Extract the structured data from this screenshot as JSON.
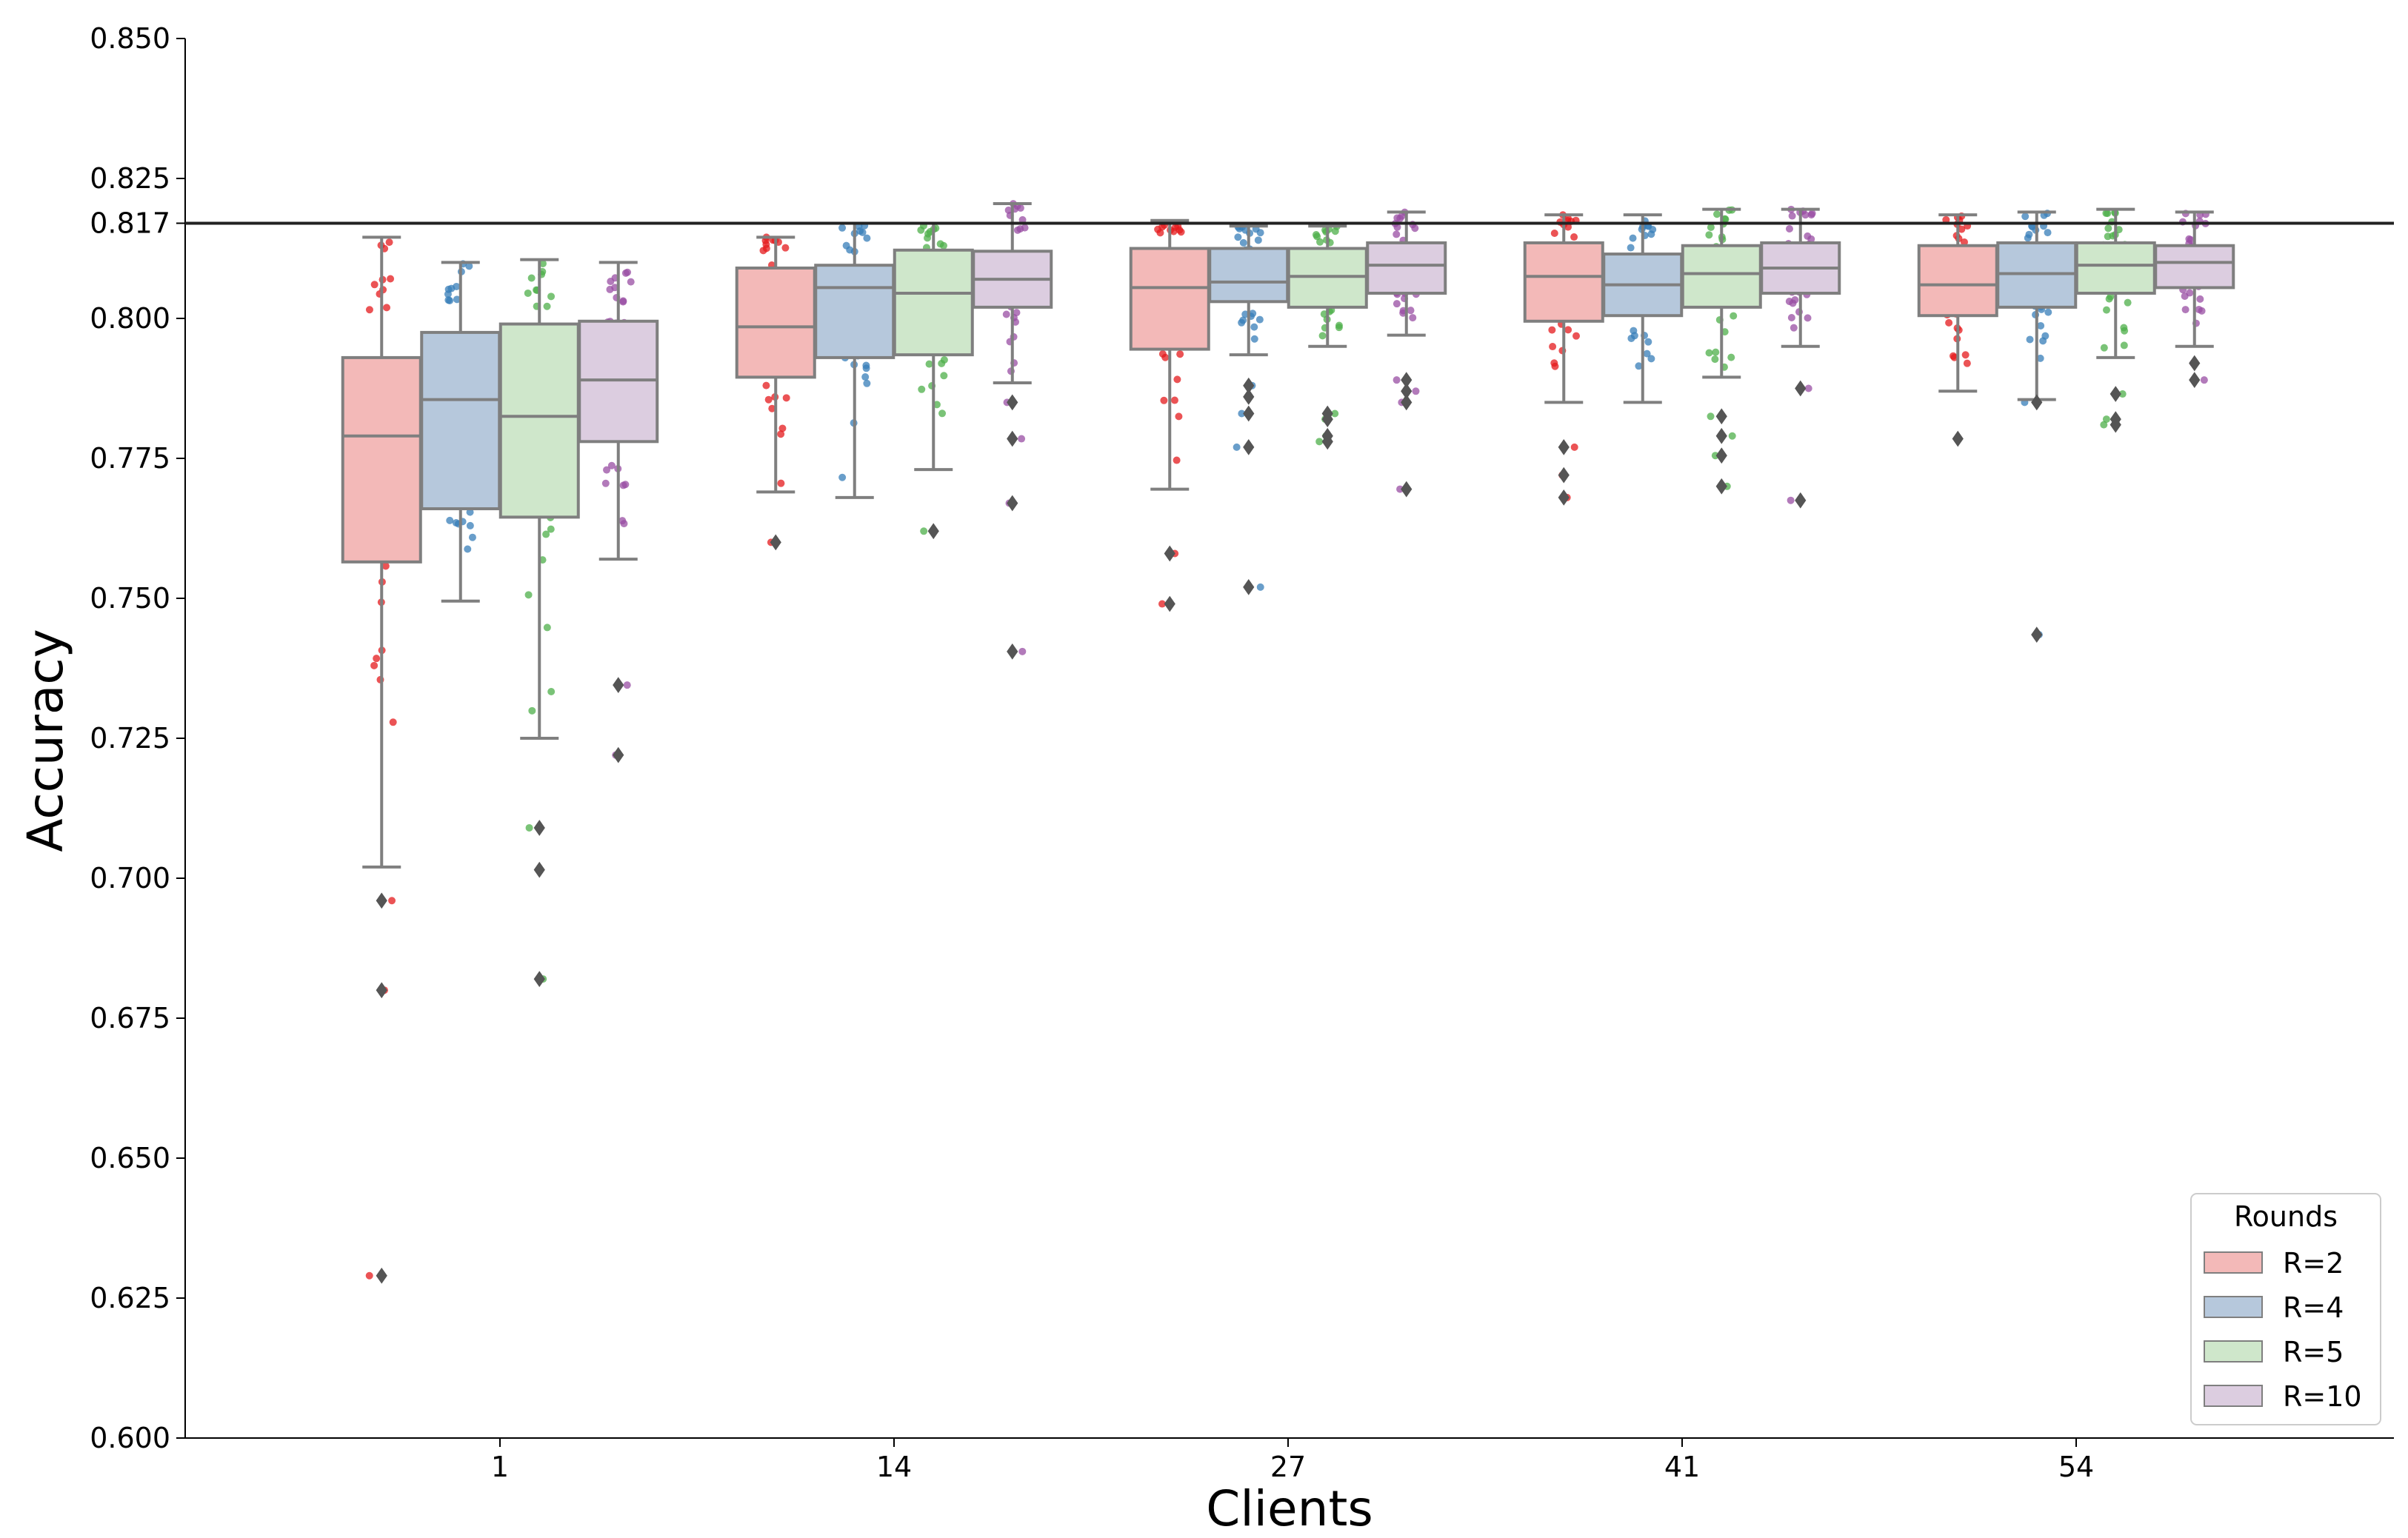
{
  "chart_data": {
    "type": "box",
    "title": "",
    "xlabel": "Clients",
    "ylabel": "Accuracy",
    "ylim": [
      0.6,
      0.85
    ],
    "yticks": [
      0.6,
      0.625,
      0.65,
      0.675,
      0.7,
      0.725,
      0.75,
      0.775,
      0.8,
      0.817,
      0.825,
      0.85
    ],
    "ytick_labels": [
      "0.600",
      "0.625",
      "0.650",
      "0.675",
      "0.700",
      "0.725",
      "0.750",
      "0.775",
      "0.800",
      "0.817",
      "0.825",
      "0.850"
    ],
    "categories": [
      "1",
      "14",
      "27",
      "41",
      "54"
    ],
    "reference_line": 0.817,
    "legend": {
      "title": "Rounds",
      "position": "bottom-right"
    },
    "series": [
      {
        "name": "R=2",
        "color": "#e41a1c",
        "box_color": "#f3b9b8",
        "boxes": [
          {
            "q1": 0.7565,
            "median": 0.779,
            "q3": 0.793,
            "whisker_low": 0.702,
            "whisker_high": 0.8145,
            "outliers": [
              0.696,
              0.68,
              0.629
            ]
          },
          {
            "q1": 0.7895,
            "median": 0.7985,
            "q3": 0.809,
            "whisker_low": 0.769,
            "whisker_high": 0.8145,
            "outliers": [
              0.76
            ]
          },
          {
            "q1": 0.7945,
            "median": 0.8055,
            "q3": 0.8125,
            "whisker_low": 0.7695,
            "whisker_high": 0.8175,
            "outliers": [
              0.758,
              0.749
            ]
          },
          {
            "q1": 0.7995,
            "median": 0.8075,
            "q3": 0.8135,
            "whisker_low": 0.785,
            "whisker_high": 0.8185,
            "outliers": [
              0.777,
              0.772,
              0.768
            ]
          },
          {
            "q1": 0.8005,
            "median": 0.806,
            "q3": 0.813,
            "whisker_low": 0.787,
            "whisker_high": 0.8185,
            "outliers": [
              0.7785
            ]
          }
        ]
      },
      {
        "name": "R=4",
        "color": "#377eb8",
        "box_color": "#b6c8dc",
        "boxes": [
          {
            "q1": 0.766,
            "median": 0.7855,
            "q3": 0.7975,
            "whisker_low": 0.7495,
            "whisker_high": 0.81,
            "outliers": []
          },
          {
            "q1": 0.793,
            "median": 0.8055,
            "q3": 0.8095,
            "whisker_low": 0.768,
            "whisker_high": 0.817,
            "outliers": []
          },
          {
            "q1": 0.803,
            "median": 0.8065,
            "q3": 0.8125,
            "whisker_low": 0.7935,
            "whisker_high": 0.8165,
            "outliers": [
              0.788,
              0.786,
              0.783,
              0.777,
              0.752
            ]
          },
          {
            "q1": 0.8005,
            "median": 0.806,
            "q3": 0.8115,
            "whisker_low": 0.785,
            "whisker_high": 0.8185,
            "outliers": []
          },
          {
            "q1": 0.802,
            "median": 0.808,
            "q3": 0.8135,
            "whisker_low": 0.7855,
            "whisker_high": 0.819,
            "outliers": [
              0.785,
              0.7435
            ]
          }
        ]
      },
      {
        "name": "R=5",
        "color": "#4daf4a",
        "box_color": "#cfe7cb",
        "boxes": [
          {
            "q1": 0.7645,
            "median": 0.7825,
            "q3": 0.799,
            "whisker_low": 0.725,
            "whisker_high": 0.8105,
            "outliers": [
              0.709,
              0.7015,
              0.682
            ]
          },
          {
            "q1": 0.7935,
            "median": 0.8045,
            "q3": 0.8122,
            "whisker_low": 0.773,
            "whisker_high": 0.817,
            "outliers": [
              0.762
            ]
          },
          {
            "q1": 0.802,
            "median": 0.8075,
            "q3": 0.8125,
            "whisker_low": 0.795,
            "whisker_high": 0.8165,
            "outliers": [
              0.783,
              0.782,
              0.779,
              0.778
            ]
          },
          {
            "q1": 0.802,
            "median": 0.808,
            "q3": 0.813,
            "whisker_low": 0.7895,
            "whisker_high": 0.8195,
            "outliers": [
              0.7825,
              0.779,
              0.7755,
              0.77
            ]
          },
          {
            "q1": 0.8045,
            "median": 0.8095,
            "q3": 0.8135,
            "whisker_low": 0.793,
            "whisker_high": 0.8195,
            "outliers": [
              0.7865,
              0.782,
              0.781
            ]
          }
        ]
      },
      {
        "name": "R=10",
        "color": "#984ea3",
        "box_color": "#dccde0",
        "boxes": [
          {
            "q1": 0.778,
            "median": 0.789,
            "q3": 0.7995,
            "whisker_low": 0.757,
            "whisker_high": 0.81,
            "outliers": [
              0.7345,
              0.722
            ]
          },
          {
            "q1": 0.802,
            "median": 0.807,
            "q3": 0.812,
            "whisker_low": 0.7885,
            "whisker_high": 0.8205,
            "outliers": [
              0.785,
              0.7785,
              0.767,
              0.7405
            ]
          },
          {
            "q1": 0.8045,
            "median": 0.8095,
            "q3": 0.8135,
            "whisker_low": 0.797,
            "whisker_high": 0.819,
            "outliers": [
              0.789,
              0.787,
              0.785,
              0.7695
            ]
          },
          {
            "q1": 0.8045,
            "median": 0.809,
            "q3": 0.8135,
            "whisker_low": 0.795,
            "whisker_high": 0.8195,
            "outliers": [
              0.7875,
              0.7675
            ]
          },
          {
            "q1": 0.8055,
            "median": 0.81,
            "q3": 0.813,
            "whisker_low": 0.795,
            "whisker_high": 0.819,
            "outliers": [
              0.792,
              0.789
            ]
          }
        ]
      }
    ]
  }
}
